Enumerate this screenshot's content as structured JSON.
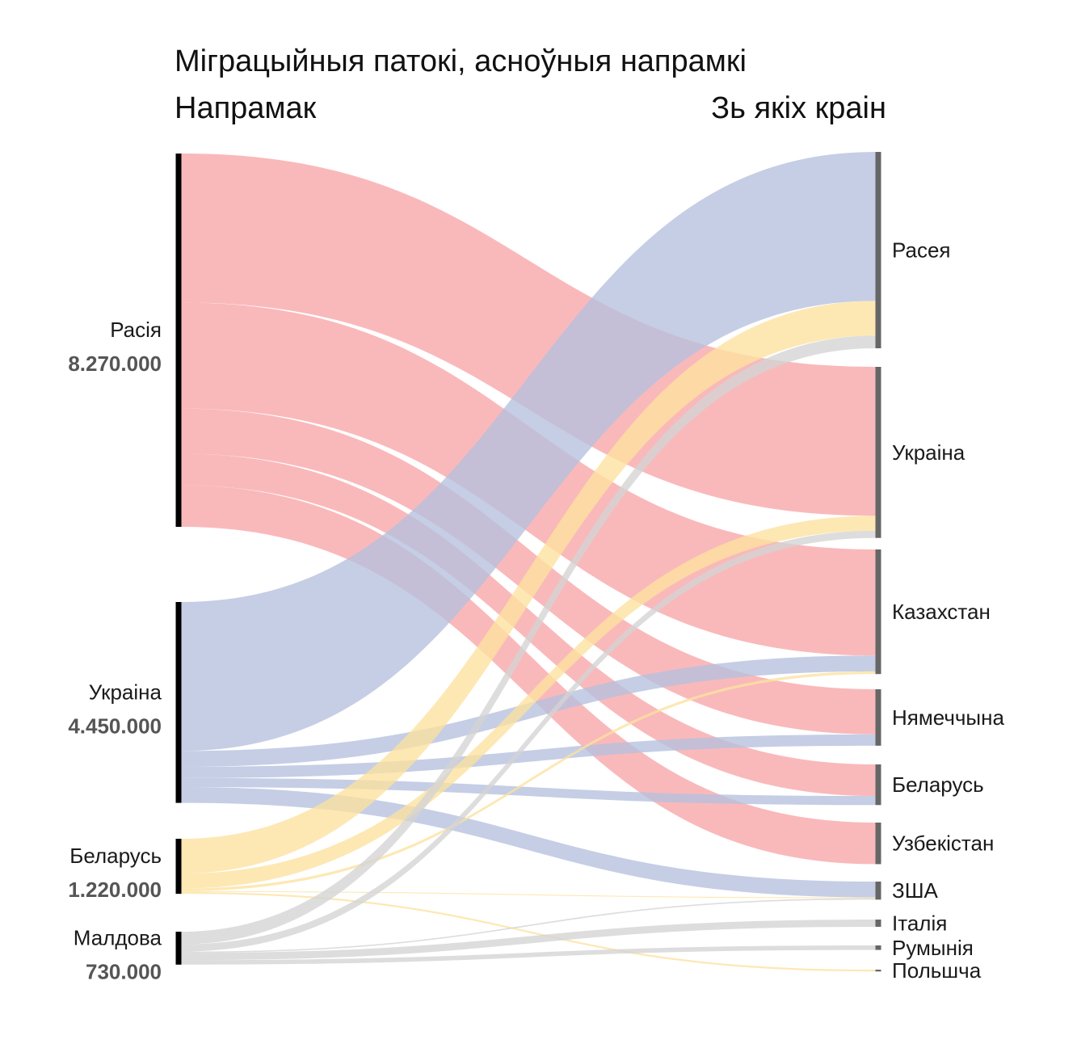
{
  "chart_data": {
    "type": "sankey",
    "title": "Міграцыйныя патокі, асноўныя напрамкі",
    "left_header": "Напрамак",
    "right_header": "Зь якіх краін",
    "sources": [
      {
        "id": "rus",
        "name": "Расія",
        "value_label": "8.270.000",
        "value": 8270000,
        "color": "#f7a5a8",
        "bar_color": "#000000"
      },
      {
        "id": "ukr",
        "name": "Украіна",
        "value_label": "4.450.000",
        "value": 4450000,
        "color": "#b5c0de",
        "bar_color": "#000000"
      },
      {
        "id": "blr",
        "name": "Беларусь",
        "value_label": "1.220.000",
        "value": 1220000,
        "color": "#fde29f",
        "bar_color": "#000000"
      },
      {
        "id": "mda",
        "name": "Малдова",
        "value_label": "730.000",
        "value": 730000,
        "color": "#d4d4d4",
        "bar_color": "#000000"
      }
    ],
    "targets": [
      {
        "id": "t_rus",
        "name": "Расея"
      },
      {
        "id": "t_ukr",
        "name": "Украіна"
      },
      {
        "id": "t_kaz",
        "name": "Казахстан"
      },
      {
        "id": "t_deu",
        "name": "Нямеччына"
      },
      {
        "id": "t_blr",
        "name": "Беларусь"
      },
      {
        "id": "t_uzb",
        "name": "Узбекістан"
      },
      {
        "id": "t_usa",
        "name": "ЗША"
      },
      {
        "id": "t_ita",
        "name": "Італія"
      },
      {
        "id": "t_rou",
        "name": "Румынія"
      },
      {
        "id": "t_pol",
        "name": "Польшча"
      }
    ],
    "target_bar_color": "#666666",
    "flows": [
      {
        "source": "rus",
        "target": "t_ukr",
        "value": 3300000
      },
      {
        "source": "rus",
        "target": "t_kaz",
        "value": 2350000
      },
      {
        "source": "rus",
        "target": "t_deu",
        "value": 1000000
      },
      {
        "source": "rus",
        "target": "t_blr",
        "value": 700000
      },
      {
        "source": "rus",
        "target": "t_uzb",
        "value": 920000
      },
      {
        "source": "ukr",
        "target": "t_rus",
        "value": 3300000
      },
      {
        "source": "ukr",
        "target": "t_kaz",
        "value": 350000
      },
      {
        "source": "ukr",
        "target": "t_deu",
        "value": 250000
      },
      {
        "source": "ukr",
        "target": "t_blr",
        "value": 200000
      },
      {
        "source": "ukr",
        "target": "t_usa",
        "value": 350000
      },
      {
        "source": "blr",
        "target": "t_rus",
        "value": 770000
      },
      {
        "source": "blr",
        "target": "t_ukr",
        "value": 330000
      },
      {
        "source": "blr",
        "target": "t_kaz",
        "value": 60000
      },
      {
        "source": "blr",
        "target": "t_usa",
        "value": 20000
      },
      {
        "source": "blr",
        "target": "t_pol",
        "value": 40000
      },
      {
        "source": "mda",
        "target": "t_rus",
        "value": 280000
      },
      {
        "source": "mda",
        "target": "t_ukr",
        "value": 160000
      },
      {
        "source": "mda",
        "target": "t_usa",
        "value": 30000
      },
      {
        "source": "mda",
        "target": "t_ita",
        "value": 160000
      },
      {
        "source": "mda",
        "target": "t_rou",
        "value": 100000
      }
    ]
  }
}
